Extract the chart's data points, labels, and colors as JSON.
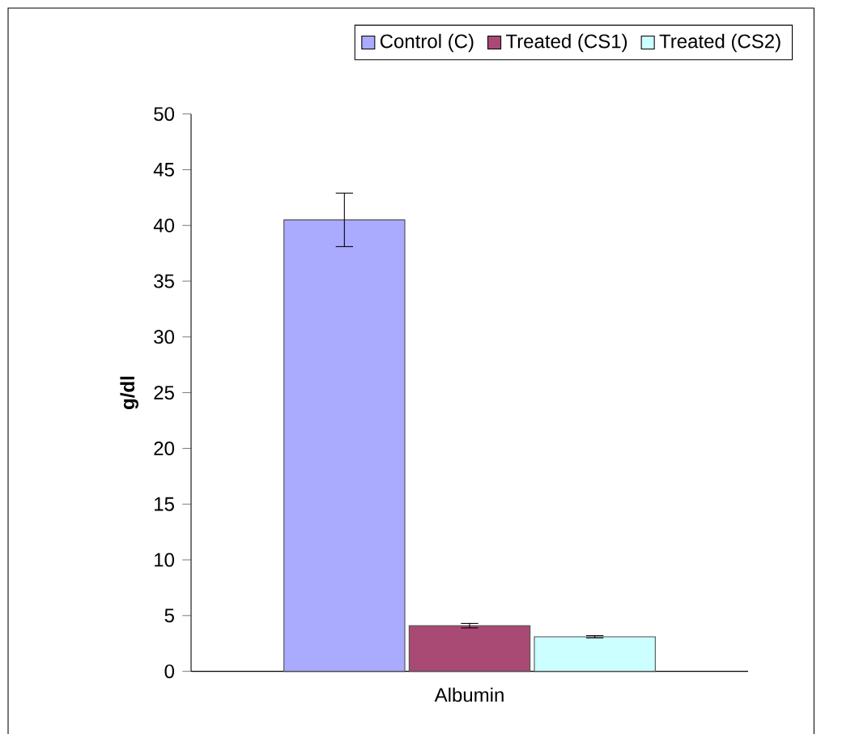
{
  "chart_data": {
    "type": "bar",
    "ylabel": "g/dl",
    "categories": [
      "Albumin"
    ],
    "series": [
      {
        "name": "Control (C)",
        "color": "#aaaaff",
        "values": [
          40.5
        ],
        "errors": [
          2.4
        ]
      },
      {
        "name": "Treated (CS1)",
        "color": "#a94a75",
        "values": [
          4.1
        ],
        "errors": [
          0.2
        ]
      },
      {
        "name": "Treated (CS2)",
        "color": "#ccffff",
        "values": [
          3.1
        ],
        "errors": [
          0.1
        ]
      }
    ],
    "ylim": [
      0,
      50
    ],
    "yticks": [
      0,
      5,
      10,
      15,
      20,
      25,
      30,
      35,
      40,
      45,
      50
    ],
    "grid": false,
    "legend": "top"
  }
}
